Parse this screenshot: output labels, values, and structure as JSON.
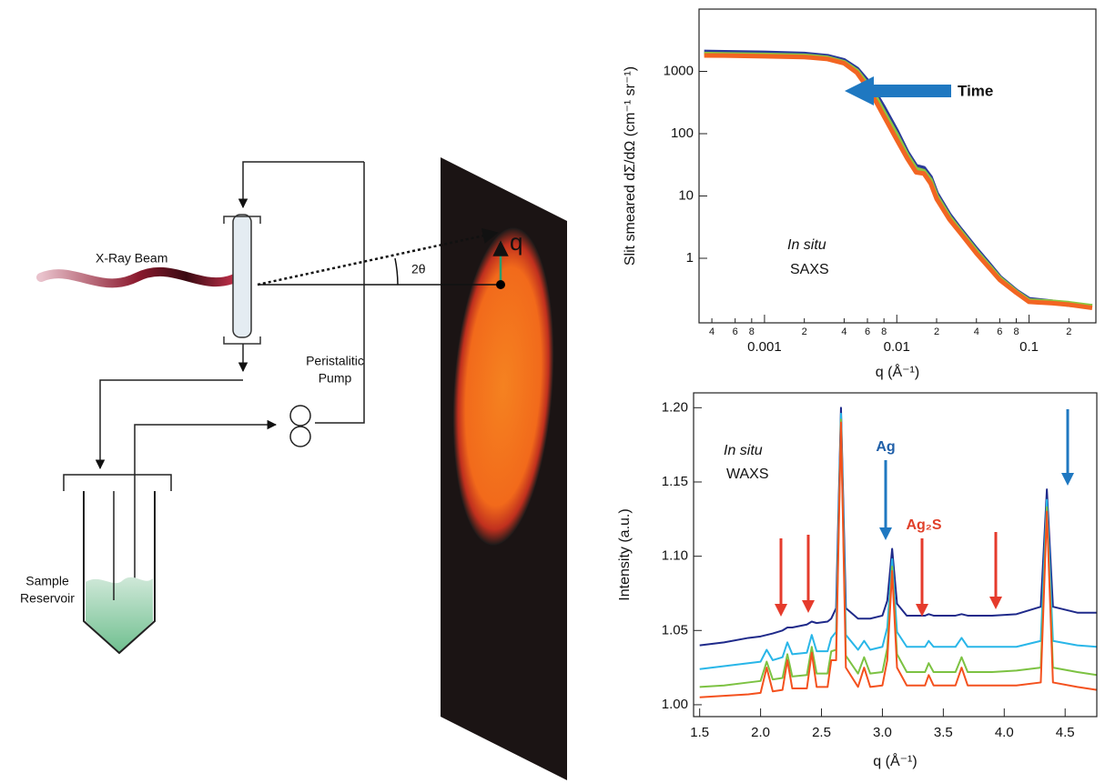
{
  "diagram": {
    "beam_label": "X-Ray Beam",
    "angle_label": "2θ",
    "vector_label": "q",
    "pump_label": [
      "Peristalitic",
      "Pump"
    ],
    "reservoir_label": [
      "Sample",
      "Reservoir"
    ]
  },
  "chart_data": [
    {
      "type": "line",
      "xlabel": "q (Å⁻¹)",
      "ylabel": "Slit smeared dΣ/dΩ (cm⁻¹ sr⁻¹)",
      "annotations": [
        "Time",
        "In situ",
        "SAXS"
      ],
      "x_scale": "log",
      "y_scale": "log",
      "xlim": [
        0.00032,
        0.32
      ],
      "ylim": [
        0.092,
        10000
      ],
      "xticks": [
        {
          "value": 0.0004,
          "label": "4"
        },
        {
          "value": 0.0006,
          "label": "6"
        },
        {
          "value": 0.0008,
          "label": "8"
        },
        0.001,
        {
          "value": 0.002,
          "label": "2"
        },
        {
          "value": 0.004,
          "label": "4"
        },
        {
          "value": 0.006,
          "label": "6"
        },
        {
          "value": 0.008,
          "label": "8"
        },
        0.01,
        {
          "value": 0.02,
          "label": "2"
        },
        {
          "value": 0.04,
          "label": "4"
        },
        {
          "value": 0.06,
          "label": "6"
        },
        {
          "value": 0.08,
          "label": "8"
        },
        0.1,
        {
          "value": 0.2,
          "label": "2"
        }
      ],
      "yticks": [
        1,
        10,
        100,
        1000
      ],
      "x": [
        0.00035,
        0.0005,
        0.001,
        0.002,
        0.003,
        0.004,
        0.005,
        0.006,
        0.007,
        0.008,
        0.01,
        0.012,
        0.014,
        0.016,
        0.018,
        0.02,
        0.025,
        0.03,
        0.04,
        0.05,
        0.06,
        0.08,
        0.1,
        0.15,
        0.2,
        0.3
      ],
      "series": [
        {
          "color": "#2a3a9a",
          "values": [
            2050,
            2030,
            1980,
            1900,
            1750,
            1500,
            1100,
            700,
            420,
            260,
            110,
            50,
            30,
            28,
            20,
            11,
            5,
            3,
            1.4,
            0.8,
            0.5,
            0.3,
            0.22,
            0.2,
            0.18,
            0.17
          ]
        },
        {
          "color": "#8cc63f",
          "values": [
            1900,
            1880,
            1840,
            1780,
            1650,
            1400,
            1020,
            620,
            370,
            220,
            95,
            45,
            27,
            25,
            18,
            10,
            4.6,
            2.8,
            1.3,
            0.75,
            0.48,
            0.29,
            0.21,
            0.2,
            0.19,
            0.17
          ]
        },
        {
          "color": "#f26522",
          "values": [
            1800,
            1790,
            1750,
            1700,
            1580,
            1350,
            950,
            550,
            320,
            190,
            80,
            40,
            24,
            23,
            16,
            9,
            4.2,
            2.6,
            1.2,
            0.7,
            0.45,
            0.28,
            0.2,
            0.19,
            0.18,
            0.16
          ]
        }
      ]
    },
    {
      "type": "line",
      "xlabel": "q (Å⁻¹)",
      "ylabel": "Intensity (a.u.)",
      "annotations": [
        "In situ",
        "WAXS",
        "Ag",
        "Ag₂S"
      ],
      "x_scale": "linear",
      "y_scale": "linear",
      "xlim": [
        1.45,
        4.76
      ],
      "ylim": [
        0.992,
        1.21
      ],
      "xticks": [
        1.5,
        {
          "value": 2,
          "label": "2.0"
        },
        2.5,
        {
          "value": 3,
          "label": "3.0"
        },
        3.5,
        {
          "value": 4,
          "label": "4.0"
        },
        4.5
      ],
      "yticks": [
        {
          "value": 1,
          "label": "1.00"
        },
        1.05,
        {
          "value": 1.1,
          "label": "1.10"
        },
        1.15,
        {
          "value": 1.2,
          "label": "1.20"
        }
      ],
      "x": [
        1.5,
        1.7,
        1.9,
        2.0,
        2.05,
        2.1,
        2.18,
        2.22,
        2.26,
        2.38,
        2.42,
        2.46,
        2.55,
        2.58,
        2.62,
        2.66,
        2.7,
        2.8,
        2.85,
        2.9,
        3.0,
        3.04,
        3.08,
        3.12,
        3.2,
        3.35,
        3.38,
        3.42,
        3.6,
        3.65,
        3.7,
        3.9,
        4.1,
        4.3,
        4.35,
        4.4,
        4.6,
        4.76
      ],
      "series": [
        {
          "color": "#1f2a8a",
          "values": [
            1.04,
            1.042,
            1.045,
            1.046,
            1.047,
            1.048,
            1.05,
            1.052,
            1.052,
            1.054,
            1.056,
            1.055,
            1.056,
            1.058,
            1.065,
            1.2,
            1.065,
            1.058,
            1.058,
            1.058,
            1.06,
            1.07,
            1.105,
            1.068,
            1.06,
            1.06,
            1.061,
            1.06,
            1.06,
            1.061,
            1.06,
            1.06,
            1.061,
            1.066,
            1.145,
            1.066,
            1.062,
            1.062
          ]
        },
        {
          "color": "#29b6e8",
          "values": [
            1.024,
            1.026,
            1.028,
            1.029,
            1.037,
            1.03,
            1.032,
            1.042,
            1.034,
            1.035,
            1.047,
            1.036,
            1.036,
            1.045,
            1.049,
            1.196,
            1.047,
            1.037,
            1.043,
            1.037,
            1.039,
            1.052,
            1.098,
            1.049,
            1.039,
            1.039,
            1.043,
            1.039,
            1.039,
            1.045,
            1.039,
            1.039,
            1.039,
            1.043,
            1.138,
            1.043,
            1.04,
            1.039
          ]
        },
        {
          "color": "#7cc242",
          "values": [
            1.012,
            1.013,
            1.015,
            1.016,
            1.029,
            1.017,
            1.018,
            1.034,
            1.019,
            1.02,
            1.039,
            1.021,
            1.021,
            1.036,
            1.037,
            1.192,
            1.033,
            1.021,
            1.032,
            1.021,
            1.022,
            1.038,
            1.093,
            1.034,
            1.022,
            1.022,
            1.028,
            1.022,
            1.022,
            1.032,
            1.022,
            1.022,
            1.023,
            1.025,
            1.133,
            1.025,
            1.022,
            1.02
          ]
        },
        {
          "color": "#f4511e",
          "values": [
            1.005,
            1.006,
            1.007,
            1.008,
            1.025,
            1.009,
            1.01,
            1.03,
            1.011,
            1.011,
            1.035,
            1.012,
            1.012,
            1.03,
            1.03,
            1.19,
            1.025,
            1.012,
            1.025,
            1.012,
            1.013,
            1.03,
            1.09,
            1.025,
            1.013,
            1.013,
            1.02,
            1.013,
            1.013,
            1.025,
            1.013,
            1.013,
            1.013,
            1.015,
            1.13,
            1.015,
            1.012,
            1.01
          ]
        }
      ]
    }
  ]
}
